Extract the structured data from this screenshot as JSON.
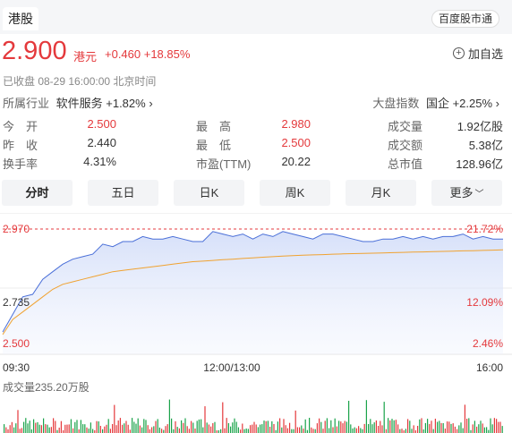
{
  "header": {
    "market_tab": "港股",
    "top_link": "百度股市通"
  },
  "quote": {
    "price": "2.900",
    "unit": "港元",
    "change": "+0.460 +18.85%",
    "status": "已收盘  08-29 16:00:00  北京时间",
    "add_label": "加自选",
    "industry_label": "所属行业",
    "industry_value": "软件服务 +1.82%",
    "index_label": "大盘指数",
    "index_value": "国企 +2.25%"
  },
  "stats": [
    {
      "label": "今　开",
      "value": "2.500",
      "color": "#e4393c"
    },
    {
      "label": "最　高",
      "value": "2.980",
      "color": "#e4393c"
    },
    {
      "label": "成交量",
      "value": "1.92亿股",
      "color": "#333333"
    },
    {
      "label": "昨　收",
      "value": "2.440",
      "color": "#333333"
    },
    {
      "label": "最　低",
      "value": "2.500",
      "color": "#e4393c"
    },
    {
      "label": "成交额",
      "value": "5.38亿",
      "color": "#333333"
    },
    {
      "label": "换手率",
      "value": "4.31%",
      "color": "#333333"
    },
    {
      "label": "市盈(TTM)",
      "value": "20.22",
      "color": "#333333"
    },
    {
      "label": "总市值",
      "value": "128.96亿",
      "color": "#333333"
    }
  ],
  "tabs": [
    "分时",
    "五日",
    "日K",
    "周K",
    "月K",
    "更多"
  ],
  "chart_data": {
    "type": "line",
    "y_ticks_left": [
      "2.970",
      "2.735",
      "2.500"
    ],
    "y_ticks_right": [
      "21.72%",
      "12.09%",
      "2.46%"
    ],
    "x_ticks": [
      "09:30",
      "12:00/13:00",
      "16:00"
    ],
    "ylim": [
      2.5,
      2.97
    ],
    "prev_close": 2.44,
    "series": [
      {
        "color": "#4a6fd8",
        "x": [
          0,
          2,
          4,
          6,
          8,
          10,
          12,
          14,
          16,
          18,
          20,
          22,
          24,
          26,
          28,
          30,
          32,
          34,
          36,
          38,
          40,
          42,
          44,
          46,
          48,
          50,
          52,
          54,
          56,
          58,
          60,
          62,
          64,
          66,
          68,
          70,
          72,
          74,
          76,
          78,
          80,
          82,
          84,
          86,
          88,
          90,
          92,
          94,
          96,
          98,
          100
        ],
        "values": [
          2.56,
          2.63,
          2.7,
          2.71,
          2.77,
          2.8,
          2.83,
          2.85,
          2.86,
          2.87,
          2.91,
          2.9,
          2.92,
          2.92,
          2.94,
          2.93,
          2.93,
          2.94,
          2.93,
          2.92,
          2.92,
          2.96,
          2.95,
          2.94,
          2.95,
          2.93,
          2.95,
          2.94,
          2.96,
          2.95,
          2.94,
          2.93,
          2.95,
          2.95,
          2.94,
          2.93,
          2.92,
          2.92,
          2.93,
          2.93,
          2.94,
          2.93,
          2.94,
          2.93,
          2.94,
          2.94,
          2.95,
          2.93,
          2.94,
          2.93,
          2.93
        ]
      },
      {
        "color": "#f0a230",
        "x": [
          0,
          2,
          4,
          6,
          8,
          10,
          12,
          14,
          16,
          18,
          20,
          22,
          24,
          26,
          28,
          30,
          32,
          34,
          36,
          38,
          40,
          42,
          44,
          46,
          48,
          50,
          52,
          54,
          56,
          58,
          60,
          62,
          64,
          66,
          68,
          70,
          72,
          74,
          76,
          78,
          80,
          82,
          84,
          86,
          88,
          90,
          92,
          94,
          96,
          98,
          100
        ],
        "values": [
          2.55,
          2.61,
          2.64,
          2.67,
          2.7,
          2.73,
          2.75,
          2.76,
          2.77,
          2.78,
          2.79,
          2.8,
          2.805,
          2.81,
          2.815,
          2.82,
          2.825,
          2.83,
          2.835,
          2.84,
          2.842,
          2.845,
          2.848,
          2.85,
          2.853,
          2.855,
          2.858,
          2.86,
          2.862,
          2.864,
          2.866,
          2.867,
          2.868,
          2.87,
          2.871,
          2.872,
          2.873,
          2.874,
          2.875,
          2.876,
          2.877,
          2.878,
          2.879,
          2.88,
          2.881,
          2.882,
          2.883,
          2.884,
          2.885,
          2.886,
          2.887
        ]
      }
    ],
    "volume_label": "成交量235.20万股"
  }
}
